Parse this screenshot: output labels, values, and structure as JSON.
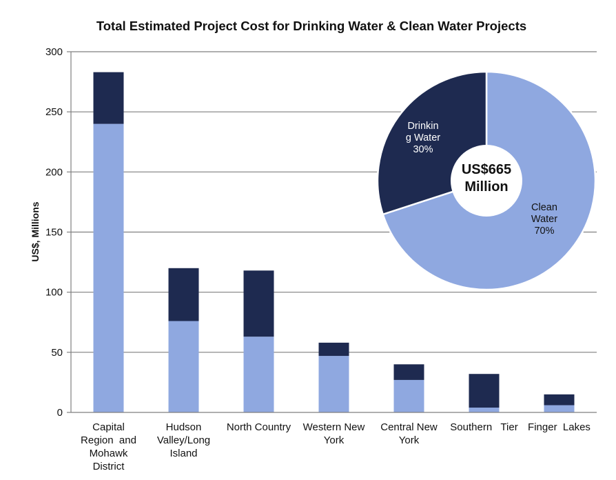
{
  "chart_data": [
    {
      "type": "bar",
      "stacked": true,
      "title": "Total Estimated Project Cost for Drinking Water & Clean Water Projects",
      "ylabel": "US$, Millions",
      "ylim": [
        0,
        300
      ],
      "yticks": [
        0,
        50,
        100,
        150,
        200,
        250,
        300
      ],
      "grid": true,
      "categories": [
        [
          "Capital",
          "Region  and",
          "Mohawk",
          "District"
        ],
        [
          "Hudson",
          "Valley/Long",
          "Island"
        ],
        [
          "North Country"
        ],
        [
          "Western New",
          "York"
        ],
        [
          "Central New",
          "York"
        ],
        [
          "Southern   Tier"
        ],
        [
          "Finger  Lakes"
        ]
      ],
      "series": [
        {
          "key": "clean",
          "color": "#8FA8E0",
          "values": [
            240,
            76,
            63,
            47,
            27,
            4,
            6
          ]
        },
        {
          "key": "drinking",
          "color": "#1E2A50",
          "values": [
            43,
            44,
            55,
            11,
            13,
            28,
            9
          ]
        }
      ]
    },
    {
      "type": "pie",
      "center_label": [
        "US$665",
        "Million"
      ],
      "slices": [
        {
          "label": [
            "Drinkin",
            "g Water",
            "30%"
          ],
          "value": 30,
          "color": "#1E2A50",
          "text_color": "#ffffff"
        },
        {
          "label": [
            "Clean",
            "Water",
            "70%"
          ],
          "value": 70,
          "color": "#8FA8E0",
          "text_color": "#111111"
        }
      ]
    }
  ]
}
